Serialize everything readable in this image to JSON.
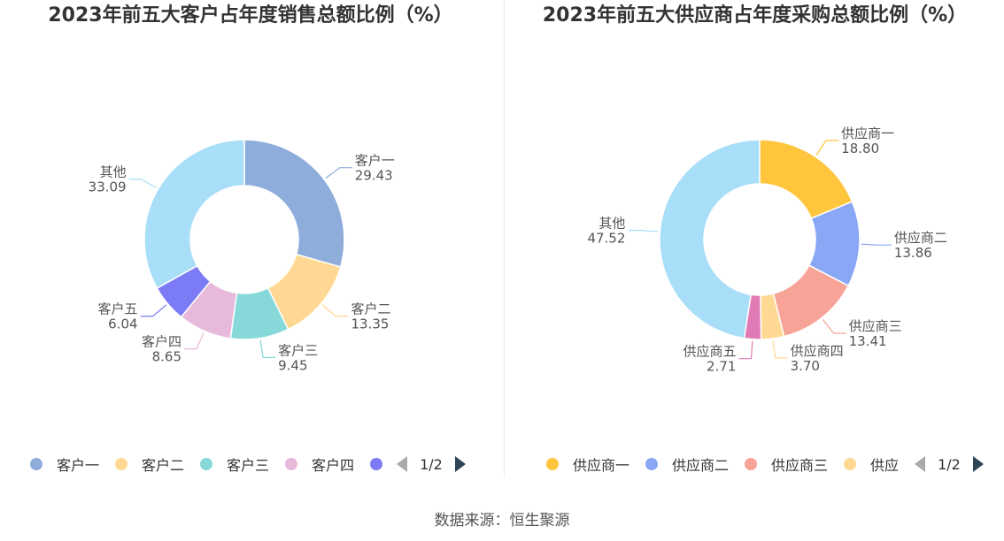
{
  "chart_data": [
    {
      "type": "pie",
      "title": "2023年前五大客户占年度销售总额比例（%）",
      "categories": [
        "客户一",
        "客户二",
        "客户三",
        "客户四",
        "客户五",
        "其他"
      ],
      "values": [
        29.43,
        13.35,
        9.45,
        8.65,
        6.04,
        33.09
      ],
      "value_labels": [
        "29.43",
        "13.35",
        "9.45",
        "8.65",
        "6.04",
        "33.09"
      ],
      "colors": [
        "#8eaddb",
        "#ffd993",
        "#87d9d9",
        "#e7b9da",
        "#7b7bf5",
        "#a8def8"
      ],
      "legend": {
        "placement": "bottom",
        "visible_items": [
          "客户一",
          "客户二",
          "客户三",
          "客户四"
        ],
        "last_partial": "",
        "page": "1/2"
      }
    },
    {
      "type": "pie",
      "title": "2023年前五大供应商占年度采购总额比例（%）",
      "categories": [
        "供应商一",
        "供应商二",
        "供应商三",
        "供应商四",
        "供应商五",
        "其他"
      ],
      "values": [
        18.8,
        13.86,
        13.41,
        3.7,
        2.71,
        47.52
      ],
      "value_labels": [
        "18.80",
        "13.86",
        "13.41",
        "3.70",
        "2.71",
        "47.52"
      ],
      "colors": [
        "#ffc53d",
        "#8aa7f5",
        "#f7a397",
        "#ffd993",
        "#e07bb5",
        "#a8def8"
      ],
      "legend": {
        "placement": "bottom",
        "visible_items": [
          "供应商一",
          "供应商二",
          "供应商三"
        ],
        "last_partial": "供应",
        "page": "1/2"
      }
    }
  ],
  "source": "数据来源：恒生聚源"
}
